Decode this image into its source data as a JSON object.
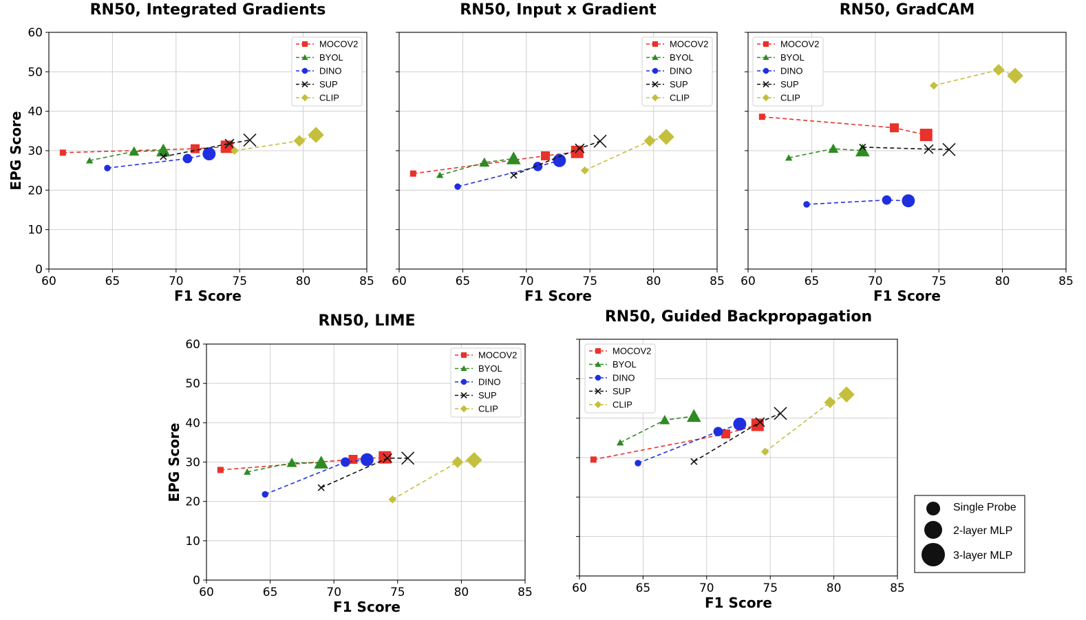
{
  "size_legend": {
    "items": [
      {
        "label": "Single Probe",
        "r": 10
      },
      {
        "label": "2-layer MLP",
        "r": 13
      },
      {
        "label": "3-layer MLP",
        "r": 17
      }
    ]
  },
  "series_styles": [
    {
      "name": "MOCOV2",
      "color": "#e8322a",
      "marker": "square"
    },
    {
      "name": "BYOL",
      "color": "#2e8b22",
      "marker": "triangle"
    },
    {
      "name": "DINO",
      "color": "#1f2fe0",
      "marker": "circle"
    },
    {
      "name": "SUP",
      "color": "#111111",
      "marker": "x"
    },
    {
      "name": "CLIP",
      "color": "#c4bf3c",
      "marker": "diamond"
    }
  ],
  "chart_data": [
    {
      "type": "scatter",
      "title": "RN50, Integrated Gradients",
      "xlabel": "F1 Score",
      "ylabel": "EPG Score",
      "xlim": [
        60,
        85
      ],
      "ylim": [
        0,
        60
      ],
      "xticks": [
        60,
        65,
        70,
        75,
        80,
        85
      ],
      "yticks": [
        0,
        10,
        20,
        30,
        40,
        50,
        60
      ],
      "show_yticklabels": true,
      "series": [
        {
          "name": "MOCOV2",
          "x": [
            61.1,
            71.5,
            74.0
          ],
          "y": [
            29.5,
            30.5,
            31.0
          ]
        },
        {
          "name": "BYOL",
          "x": [
            63.2,
            66.7,
            69.0
          ],
          "y": [
            27.5,
            29.8,
            30.0
          ]
        },
        {
          "name": "DINO",
          "x": [
            64.6,
            70.9,
            72.6
          ],
          "y": [
            25.6,
            28.0,
            29.2
          ]
        },
        {
          "name": "SUP",
          "x": [
            69.0,
            74.2,
            75.8
          ],
          "y": [
            28.5,
            31.8,
            32.7
          ]
        },
        {
          "name": "CLIP",
          "x": [
            74.6,
            79.7,
            81.0
          ],
          "y": [
            30.0,
            32.5,
            34.0
          ]
        }
      ]
    },
    {
      "type": "scatter",
      "title": "RN50, Input x Gradient",
      "xlabel": "F1 Score",
      "ylabel": "",
      "xlim": [
        60,
        85
      ],
      "ylim": [
        0,
        60
      ],
      "xticks": [
        60,
        65,
        70,
        75,
        80,
        85
      ],
      "yticks": [
        0,
        10,
        20,
        30,
        40,
        50,
        60
      ],
      "show_yticklabels": false,
      "series": [
        {
          "name": "MOCOV2",
          "x": [
            61.1,
            71.5,
            74.0
          ],
          "y": [
            24.2,
            28.7,
            29.7
          ]
        },
        {
          "name": "BYOL",
          "x": [
            63.2,
            66.7,
            69.0
          ],
          "y": [
            23.8,
            27.0,
            28.0
          ]
        },
        {
          "name": "DINO",
          "x": [
            64.6,
            70.9,
            72.6
          ],
          "y": [
            20.9,
            26.0,
            27.5
          ]
        },
        {
          "name": "SUP",
          "x": [
            69.0,
            74.2,
            75.8
          ],
          "y": [
            23.8,
            30.6,
            32.4
          ]
        },
        {
          "name": "CLIP",
          "x": [
            74.6,
            79.7,
            81.0
          ],
          "y": [
            25.0,
            32.5,
            33.5
          ]
        }
      ]
    },
    {
      "type": "scatter",
      "title": "RN50, GradCAM",
      "xlabel": "F1 Score",
      "ylabel": "",
      "xlim": [
        60,
        85
      ],
      "ylim": [
        0,
        60
      ],
      "xticks": [
        60,
        65,
        70,
        75,
        80,
        85
      ],
      "yticks": [
        0,
        10,
        20,
        30,
        40,
        50,
        60
      ],
      "show_yticklabels": false,
      "series": [
        {
          "name": "MOCOV2",
          "x": [
            61.1,
            71.5,
            74.0
          ],
          "y": [
            38.6,
            35.8,
            34.0
          ]
        },
        {
          "name": "BYOL",
          "x": [
            63.2,
            66.7,
            69.0
          ],
          "y": [
            28.2,
            30.5,
            30.0
          ]
        },
        {
          "name": "DINO",
          "x": [
            64.6,
            70.9,
            72.6
          ],
          "y": [
            16.4,
            17.5,
            17.3
          ]
        },
        {
          "name": "SUP",
          "x": [
            69.0,
            74.2,
            75.8
          ],
          "y": [
            30.9,
            30.4,
            30.3
          ]
        },
        {
          "name": "CLIP",
          "x": [
            74.6,
            79.7,
            81.0
          ],
          "y": [
            46.5,
            50.5,
            49.0
          ]
        }
      ]
    },
    {
      "type": "scatter",
      "title": "RN50, LIME",
      "xlabel": "F1 Score",
      "ylabel": "EPG Score",
      "xlim": [
        60,
        85
      ],
      "ylim": [
        0,
        60
      ],
      "xticks": [
        60,
        65,
        70,
        75,
        80,
        85
      ],
      "yticks": [
        0,
        10,
        20,
        30,
        40,
        50,
        60
      ],
      "show_yticklabels": true,
      "series": [
        {
          "name": "MOCOV2",
          "x": [
            61.1,
            71.5,
            74.0
          ],
          "y": [
            28.0,
            30.7,
            31.2
          ]
        },
        {
          "name": "BYOL",
          "x": [
            63.2,
            66.7,
            69.0
          ],
          "y": [
            27.5,
            29.8,
            29.8
          ]
        },
        {
          "name": "DINO",
          "x": [
            64.6,
            70.9,
            72.6
          ],
          "y": [
            21.8,
            30.0,
            30.6
          ]
        },
        {
          "name": "SUP",
          "x": [
            69.0,
            74.2,
            75.8
          ],
          "y": [
            23.5,
            31.0,
            31.0
          ]
        },
        {
          "name": "CLIP",
          "x": [
            74.6,
            79.7,
            81.0
          ],
          "y": [
            20.5,
            30.0,
            30.5
          ]
        }
      ]
    },
    {
      "type": "scatter",
      "title": "RN50, Guided Backpropagation",
      "xlabel": "F1 Score",
      "ylabel": "",
      "xlim": [
        60,
        85
      ],
      "ylim": [
        0,
        60
      ],
      "xticks": [
        60,
        65,
        70,
        75,
        80,
        85
      ],
      "yticks": [
        0,
        10,
        20,
        30,
        40,
        50,
        60
      ],
      "show_yticklabels": false,
      "series": [
        {
          "name": "MOCOV2",
          "x": [
            61.1,
            71.5,
            74.0
          ],
          "y": [
            29.5,
            36.0,
            38.3
          ]
        },
        {
          "name": "BYOL",
          "x": [
            63.2,
            66.7,
            69.0
          ],
          "y": [
            33.8,
            39.5,
            40.5
          ]
        },
        {
          "name": "DINO",
          "x": [
            64.6,
            70.9,
            72.6
          ],
          "y": [
            28.6,
            36.6,
            38.5
          ]
        },
        {
          "name": "SUP",
          "x": [
            69.0,
            74.2,
            75.8
          ],
          "y": [
            29.0,
            39.0,
            41.2
          ]
        },
        {
          "name": "CLIP",
          "x": [
            74.6,
            79.7,
            81.0
          ],
          "y": [
            31.5,
            44.0,
            46.0
          ]
        }
      ]
    }
  ]
}
